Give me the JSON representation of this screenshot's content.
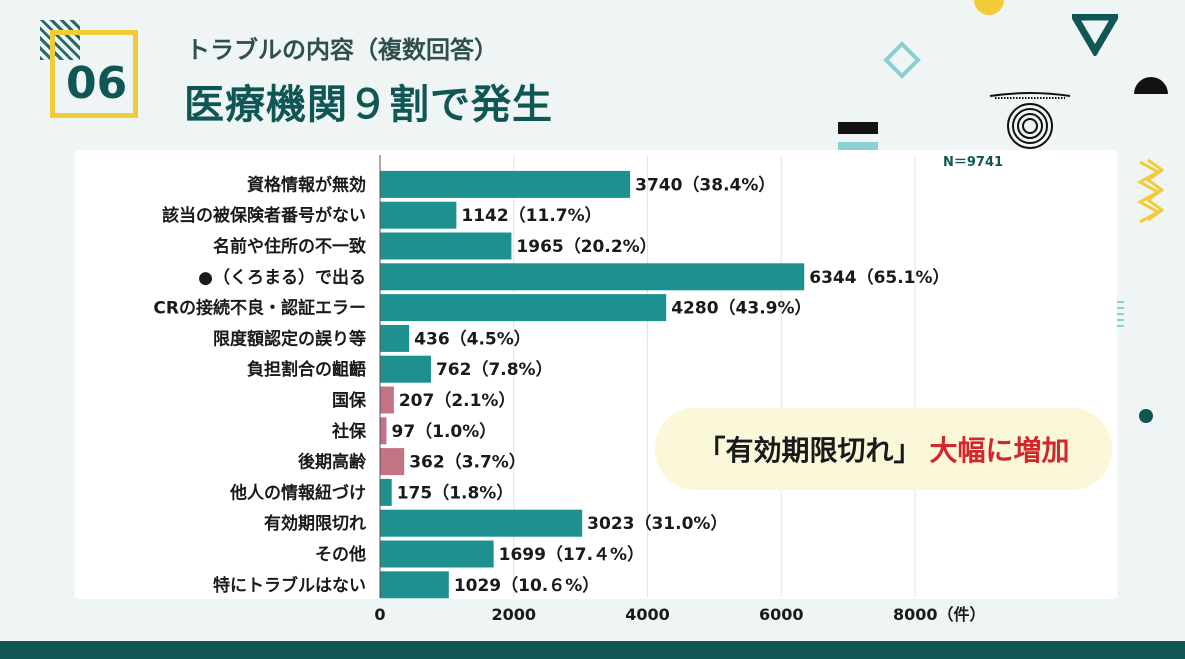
{
  "header": {
    "number": "06",
    "subtitle": "トラブルの内容（複数回答）",
    "title": "医療機関９割で発生"
  },
  "sample_size": "N＝9741",
  "callout": {
    "part1": "「有効期限切れ」",
    "part2": "大幅に増加"
  },
  "colors": {
    "bar_teal": "#1e9090",
    "bar_pink": "#c27384",
    "accent_yellow": "#f2cb38",
    "dark_teal": "#0f5654",
    "callout_red": "#d4262d"
  },
  "chart_data": {
    "type": "bar",
    "orientation": "horizontal",
    "categories": [
      "資格情報が無効",
      "該当の被保険者番号がない",
      "名前や住所の不一致",
      "●（くろまる）で出る",
      "CRの接続不良・認証エラー",
      "限度額認定の誤り等",
      "負担割合の齟齬",
      "国保",
      "社保",
      "後期高齢",
      "他人の情報紐づけ",
      "有効期限切れ",
      "その他",
      "特にトラブルはない"
    ],
    "values": [
      3740,
      1142,
      1965,
      6344,
      4280,
      436,
      762,
      207,
      97,
      362,
      175,
      3023,
      1699,
      1029
    ],
    "value_labels": [
      "3740（38.4%）",
      "1142（11.7%）",
      "1965（20.2%）",
      "6344（65.1%）",
      "4280（43.9%）",
      "436（4.5%）",
      "762（7.8%）",
      "207（2.1%）",
      "97（1.0%）",
      "362（3.7%）",
      "175（1.8%）",
      "3023（31.0%）",
      "1699（17.４%）",
      "1029（10.６%）"
    ],
    "bar_colors": [
      "teal",
      "teal",
      "teal",
      "teal",
      "teal",
      "teal",
      "teal",
      "pink",
      "pink",
      "pink",
      "teal",
      "teal",
      "teal",
      "teal"
    ],
    "xlim": [
      0,
      8000
    ],
    "xticks": [
      "0",
      "2000",
      "4000",
      "6000",
      "8000（件）"
    ],
    "grid": true
  }
}
